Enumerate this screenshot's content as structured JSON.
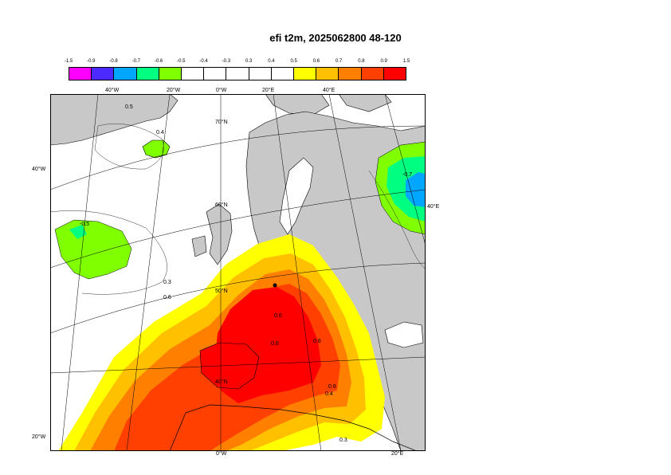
{
  "title": "efi t2m, 2025062800 48-120",
  "legend": {
    "ticks": [
      "-1.5",
      "-0.9",
      "-0.8",
      "-0.7",
      "-0.6",
      "-0.5",
      "-0.4",
      "-0.3",
      "0.3",
      "0.4",
      "0.5",
      "0.6",
      "0.7",
      "0.8",
      "0.9",
      "1.5"
    ],
    "colors": [
      "#ff00ff",
      "#4b2aff",
      "#00a6ff",
      "#00ff80",
      "#80ff00",
      "#ffffff",
      "#ffffff",
      "#ffffff",
      "#ffffff",
      "#ffffff",
      "#ffff00",
      "#ffc000",
      "#ff8000",
      "#ff4000",
      "#ff0000"
    ]
  },
  "map": {
    "top_lon_labels": [
      "40°W",
      "20°W",
      "0°W",
      "20°E",
      "40°E"
    ],
    "bottom_lon_labels": [
      "0°W",
      "20°E"
    ],
    "left_lat_labels": [
      "40°W",
      "20°W"
    ],
    "right_labels": [
      "40°E"
    ],
    "inner_lat_labels": [
      "70°N",
      "60°N",
      "50°N",
      "40°N"
    ],
    "contour_labels": [
      "0.5",
      "0.4",
      "-0.5",
      "-0.7",
      "0.6",
      "0.3",
      "0.6",
      "0.8",
      "0.8",
      "0.4",
      "0.3",
      "0.8"
    ],
    "colors": {
      "land": "#c8c8c8",
      "land_outline": "#000000",
      "sea": "#ffffff",
      "graticule": "#000000"
    }
  }
}
